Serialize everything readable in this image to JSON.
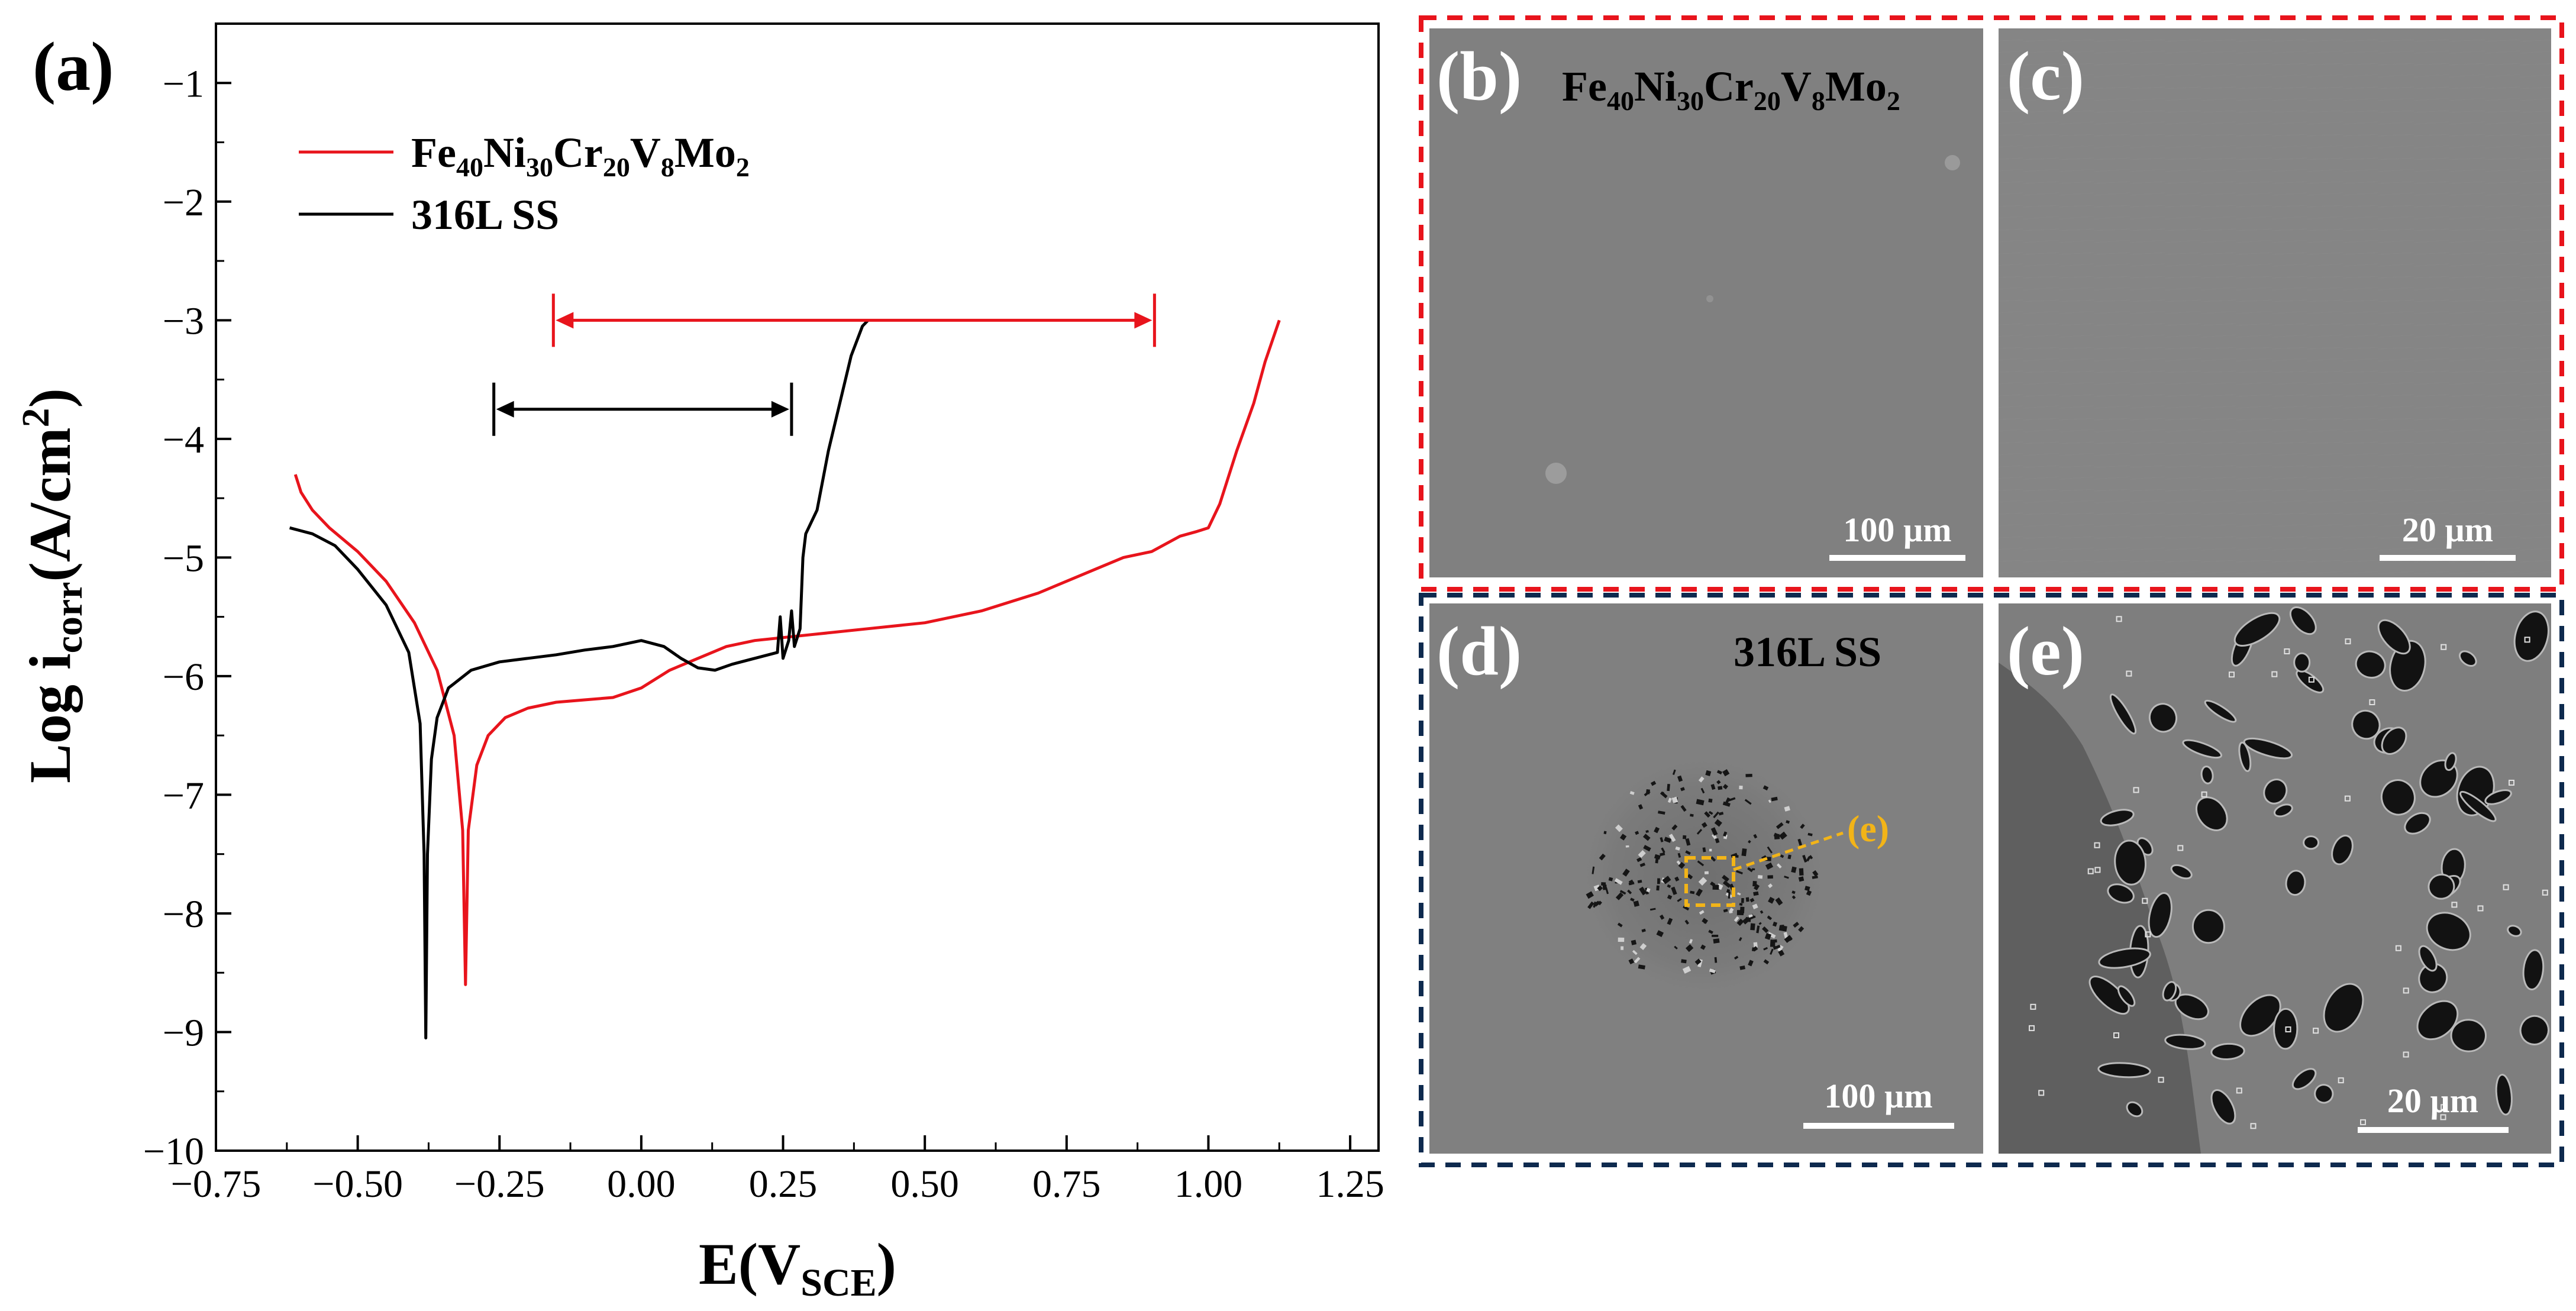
{
  "panel_labels": {
    "a": "(a)",
    "b": "(b)",
    "c": "(c)",
    "d": "(d)",
    "e": "(e)"
  },
  "chart_data": {
    "type": "line",
    "xlabel": {
      "main": "E(V",
      "sub": "SCE",
      "close": ")"
    },
    "ylabel": {
      "main": "Log i",
      "sub": "corr",
      "rest": "(A/cm",
      "sup": "2",
      "close": ")"
    },
    "xlim": [
      -0.75,
      1.3
    ],
    "ylim": [
      -10,
      -0.5
    ],
    "xticks": [
      -0.75,
      -0.5,
      -0.25,
      0.0,
      0.25,
      0.5,
      0.75,
      1.0,
      1.25
    ],
    "xtick_labels": [
      "−0.75",
      "−0.50",
      "−0.25",
      "0.00",
      "0.25",
      "0.50",
      "0.75",
      "1.00",
      "1.25"
    ],
    "yticks": [
      -10,
      -9,
      -8,
      -7,
      -6,
      -5,
      -4,
      -3,
      -2,
      -1
    ],
    "ytick_labels": [
      "−10",
      "−9",
      "−8",
      "−7",
      "−6",
      "−5",
      "−4",
      "−3",
      "−2",
      "−1"
    ],
    "grid": false,
    "legend": "top-left",
    "series": [
      {
        "name_parts": [
          [
            "Fe",
            ""
          ],
          [
            "40",
            "sub"
          ],
          [
            "Ni",
            ""
          ],
          [
            "30",
            "sub"
          ],
          [
            "Cr",
            ""
          ],
          [
            "20",
            "sub"
          ],
          [
            "V",
            ""
          ],
          [
            "8",
            "sub"
          ],
          [
            "Mo",
            ""
          ],
          [
            "2",
            "sub"
          ]
        ],
        "color": "#e8141c",
        "points": [
          [
            -0.61,
            -4.3
          ],
          [
            -0.6,
            -4.45
          ],
          [
            -0.58,
            -4.6
          ],
          [
            -0.55,
            -4.75
          ],
          [
            -0.5,
            -4.95
          ],
          [
            -0.45,
            -5.2
          ],
          [
            -0.4,
            -5.55
          ],
          [
            -0.36,
            -5.95
          ],
          [
            -0.33,
            -6.5
          ],
          [
            -0.315,
            -7.3
          ],
          [
            -0.31,
            -8.6
          ],
          [
            -0.305,
            -7.3
          ],
          [
            -0.29,
            -6.75
          ],
          [
            -0.27,
            -6.5
          ],
          [
            -0.24,
            -6.35
          ],
          [
            -0.2,
            -6.27
          ],
          [
            -0.15,
            -6.22
          ],
          [
            -0.1,
            -6.2
          ],
          [
            -0.05,
            -6.18
          ],
          [
            0.0,
            -6.1
          ],
          [
            0.05,
            -5.95
          ],
          [
            0.1,
            -5.85
          ],
          [
            0.15,
            -5.75
          ],
          [
            0.2,
            -5.7
          ],
          [
            0.3,
            -5.65
          ],
          [
            0.4,
            -5.6
          ],
          [
            0.5,
            -5.55
          ],
          [
            0.6,
            -5.45
          ],
          [
            0.7,
            -5.3
          ],
          [
            0.8,
            -5.1
          ],
          [
            0.85,
            -5.0
          ],
          [
            0.9,
            -4.95
          ],
          [
            0.95,
            -4.82
          ],
          [
            0.98,
            -4.78
          ],
          [
            1.0,
            -4.75
          ],
          [
            1.02,
            -4.55
          ],
          [
            1.05,
            -4.1
          ],
          [
            1.08,
            -3.7
          ],
          [
            1.1,
            -3.35
          ],
          [
            1.125,
            -3.0
          ]
        ]
      },
      {
        "name": "316L SS",
        "color": "#000000",
        "points": [
          [
            -0.62,
            -4.75
          ],
          [
            -0.58,
            -4.8
          ],
          [
            -0.54,
            -4.9
          ],
          [
            -0.5,
            -5.1
          ],
          [
            -0.45,
            -5.4
          ],
          [
            -0.41,
            -5.8
          ],
          [
            -0.39,
            -6.4
          ],
          [
            -0.383,
            -7.5
          ],
          [
            -0.38,
            -9.05
          ],
          [
            -0.377,
            -7.5
          ],
          [
            -0.37,
            -6.7
          ],
          [
            -0.36,
            -6.35
          ],
          [
            -0.34,
            -6.1
          ],
          [
            -0.3,
            -5.95
          ],
          [
            -0.25,
            -5.88
          ],
          [
            -0.2,
            -5.85
          ],
          [
            -0.15,
            -5.82
          ],
          [
            -0.1,
            -5.78
          ],
          [
            -0.05,
            -5.75
          ],
          [
            0.0,
            -5.7
          ],
          [
            0.04,
            -5.75
          ],
          [
            0.07,
            -5.85
          ],
          [
            0.1,
            -5.93
          ],
          [
            0.13,
            -5.95
          ],
          [
            0.16,
            -5.9
          ],
          [
            0.2,
            -5.85
          ],
          [
            0.24,
            -5.8
          ],
          [
            0.245,
            -5.5
          ],
          [
            0.25,
            -5.85
          ],
          [
            0.26,
            -5.7
          ],
          [
            0.265,
            -5.45
          ],
          [
            0.27,
            -5.75
          ],
          [
            0.28,
            -5.6
          ],
          [
            0.285,
            -5.0
          ],
          [
            0.29,
            -4.8
          ],
          [
            0.31,
            -4.6
          ],
          [
            0.33,
            -4.1
          ],
          [
            0.35,
            -3.7
          ],
          [
            0.37,
            -3.3
          ],
          [
            0.39,
            -3.05
          ],
          [
            0.4,
            -3.0
          ]
        ]
      }
    ],
    "annotations": [
      {
        "from": -0.155,
        "to": 0.905,
        "y": -3.0,
        "color": "#e8141c"
      },
      {
        "from": -0.26,
        "to": 0.265,
        "y": -3.75,
        "color": "#000000"
      }
    ]
  },
  "micrographs": {
    "b": {
      "title_parts": [
        [
          "Fe",
          ""
        ],
        [
          "40",
          "sub"
        ],
        [
          "Ni",
          ""
        ],
        [
          "30",
          "sub"
        ],
        [
          "Cr",
          ""
        ],
        [
          "20",
          "sub"
        ],
        [
          "V",
          ""
        ],
        [
          "8",
          "sub"
        ],
        [
          "Mo",
          ""
        ],
        [
          "2",
          "sub"
        ]
      ],
      "scale": "100 µm"
    },
    "c": {
      "scale": "20 µm"
    },
    "d": {
      "title": "316L SS",
      "callout": "(e)",
      "scale": "100 µm"
    },
    "e": {
      "scale": "20 µm"
    }
  },
  "colors": {
    "alloy": "#e8141c",
    "reference": "#000000",
    "group_top_border": "#e8141c",
    "group_bottom_border": "#0e2a4e",
    "sem_gray": "#808080",
    "callout": "#f2b418"
  }
}
